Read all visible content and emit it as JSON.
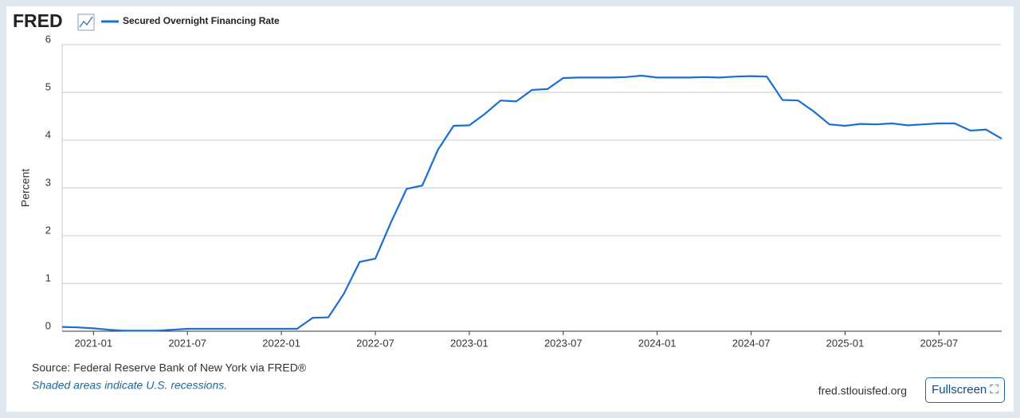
{
  "logo": "FRED",
  "source": "Source: Federal Reserve Bank of New York via FRED®",
  "note": "Shaded areas indicate U.S. recessions.",
  "site": "fred.stlouisfed.org",
  "button": "Fullscreen ⛶",
  "chart_data": {
    "type": "line",
    "ylabel": "Percent",
    "x": [
      "2020-11",
      "2020-12",
      "2021-01",
      "2021-02",
      "2021-03",
      "2021-04",
      "2021-05",
      "2021-06",
      "2021-07",
      "2021-08",
      "2021-09",
      "2021-10",
      "2021-11",
      "2021-12",
      "2022-01",
      "2022-02",
      "2022-03",
      "2022-04",
      "2022-05",
      "2022-06",
      "2022-07",
      "2022-08",
      "2022-09",
      "2022-10",
      "2022-11",
      "2022-12",
      "2023-01",
      "2023-02",
      "2023-03",
      "2023-04",
      "2023-05",
      "2023-06",
      "2023-07",
      "2023-08",
      "2023-09",
      "2023-10",
      "2023-11",
      "2023-12",
      "2024-01",
      "2024-02",
      "2024-03",
      "2024-04",
      "2024-05",
      "2024-06",
      "2024-07",
      "2024-08",
      "2024-09",
      "2024-10",
      "2024-11",
      "2024-12",
      "2025-01",
      "2025-02",
      "2025-03",
      "2025-04",
      "2025-05",
      "2025-06",
      "2025-07",
      "2025-08",
      "2025-09",
      "2025-10",
      "2025-11"
    ],
    "series": [
      {
        "name": "Secured Overnight Financing Rate",
        "color": "#1a6fcf",
        "values": [
          0.09,
          0.08,
          0.06,
          0.03,
          0.01,
          0.01,
          0.01,
          0.03,
          0.05,
          0.05,
          0.05,
          0.05,
          0.05,
          0.05,
          0.05,
          0.05,
          0.28,
          0.29,
          0.79,
          1.45,
          1.52,
          2.28,
          2.98,
          3.05,
          3.8,
          4.3,
          4.31,
          4.55,
          4.83,
          4.81,
          5.05,
          5.07,
          5.3,
          5.31,
          5.31,
          5.31,
          5.32,
          5.35,
          5.31,
          5.31,
          5.31,
          5.32,
          5.31,
          5.33,
          5.34,
          5.33,
          4.84,
          4.83,
          4.6,
          4.33,
          4.3,
          4.34,
          4.33,
          4.35,
          4.31,
          4.33,
          4.35,
          4.35,
          4.2,
          4.22,
          4.03
        ]
      }
    ],
    "xlim": [
      "2020-11",
      "2025-11"
    ],
    "xticks": [
      "2021-01",
      "2021-07",
      "2022-01",
      "2022-07",
      "2023-01",
      "2023-07",
      "2024-01",
      "2024-07",
      "2025-01",
      "2025-07"
    ],
    "ylim": [
      0,
      6
    ],
    "yticks": [
      0,
      1,
      2,
      3,
      4,
      5,
      6
    ],
    "grid": true
  }
}
